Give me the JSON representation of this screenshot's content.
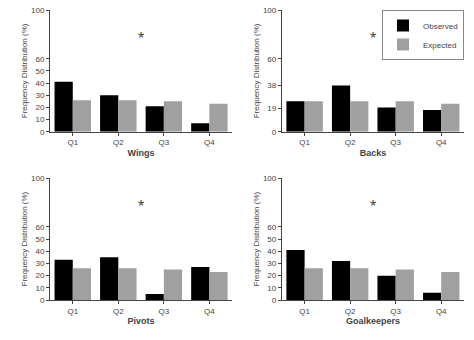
{
  "chart_data": [
    {
      "type": "bar",
      "xlabel": "Wings",
      "ylabel": "Frequency Distribution (%)",
      "categories": [
        "Q1",
        "Q2",
        "Q3",
        "Q4"
      ],
      "series": [
        {
          "name": "Observed",
          "color": "#000000",
          "values": [
            41,
            30,
            21,
            7
          ]
        },
        {
          "name": "Expected",
          "color": "#a0a0a0",
          "values": [
            26,
            26,
            25,
            23
          ]
        }
      ],
      "ylim": [
        0,
        100
      ],
      "yticks": [
        0,
        10,
        20,
        30,
        40,
        50,
        60,
        100
      ],
      "annotations": [
        {
          "text": "*",
          "x": 1.5,
          "y": 68
        }
      ],
      "grid": false
    },
    {
      "type": "bar",
      "xlabel": "Backs",
      "ylabel": "Frequency Distribution (%)",
      "categories": [
        "Q1",
        "Q2",
        "Q3",
        "Q4"
      ],
      "series": [
        {
          "name": "Observed",
          "color": "#000000",
          "values": [
            25,
            38,
            20,
            18
          ]
        },
        {
          "name": "Expected",
          "color": "#a0a0a0",
          "values": [
            25,
            25,
            25,
            23
          ]
        }
      ],
      "ylim": [
        0,
        100
      ],
      "yticks": [
        0,
        19,
        38,
        60,
        100
      ],
      "annotations": [
        {
          "text": "*",
          "x": 1.5,
          "y": 68
        }
      ],
      "grid": false,
      "legend": "upper right"
    },
    {
      "type": "bar",
      "xlabel": "Pivots",
      "ylabel": "Frequency Distribution (%)",
      "categories": [
        "Q1",
        "Q2",
        "Q3",
        "Q4"
      ],
      "series": [
        {
          "name": "Observed",
          "color": "#000000",
          "values": [
            33,
            35,
            5,
            27
          ]
        },
        {
          "name": "Expected",
          "color": "#a0a0a0",
          "values": [
            26,
            26,
            25,
            23
          ]
        }
      ],
      "ylim": [
        0,
        100
      ],
      "yticks": [
        0,
        10,
        20,
        30,
        40,
        50,
        60,
        100
      ],
      "annotations": [
        {
          "text": "*",
          "x": 1.5,
          "y": 68
        }
      ],
      "grid": false
    },
    {
      "type": "bar",
      "xlabel": "Goalkeepers",
      "ylabel": "Frequency Distribution (%)",
      "categories": [
        "Q1",
        "Q2",
        "Q3",
        "Q4"
      ],
      "series": [
        {
          "name": "Observed",
          "color": "#000000",
          "values": [
            41,
            32,
            20,
            6
          ]
        },
        {
          "name": "Expected",
          "color": "#a0a0a0",
          "values": [
            26,
            26,
            25,
            23
          ]
        }
      ],
      "ylim": [
        0,
        100
      ],
      "yticks": [
        0,
        10,
        20,
        30,
        40,
        50,
        60,
        100
      ],
      "annotations": [
        {
          "text": "*",
          "x": 1.5,
          "y": 68
        }
      ],
      "grid": false
    }
  ]
}
